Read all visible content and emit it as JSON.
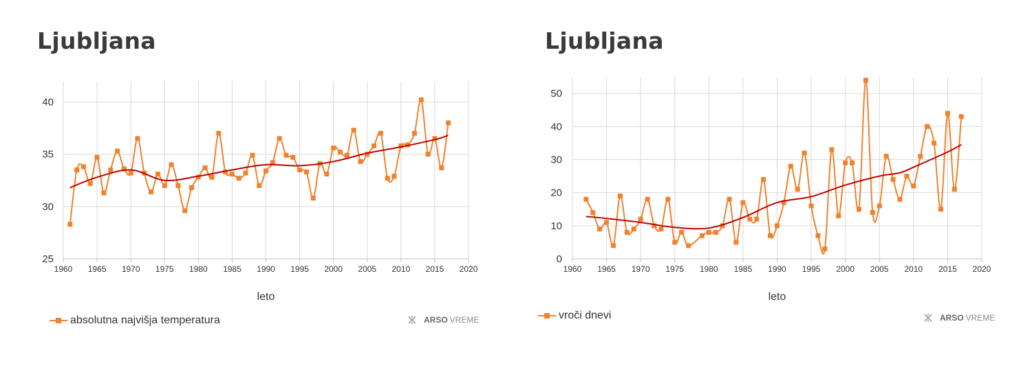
{
  "colors": {
    "series": "#f0822e",
    "trend": "#c00000",
    "grid": "#d9d9d9",
    "axis": "#c0c0c0",
    "text": "#333333"
  },
  "brand": {
    "icon": "arso-snowflake-icon",
    "name_bold": "ARSO",
    "name_light": "VREME"
  },
  "chart_data": [
    {
      "type": "line",
      "title": "Ljubljana",
      "xlabel": "leto",
      "ylabel": "",
      "xlim": [
        1960,
        2020
      ],
      "ylim": [
        25,
        42
      ],
      "xticks": [
        1960,
        1965,
        1970,
        1975,
        1980,
        1985,
        1990,
        1995,
        2000,
        2005,
        2010,
        2015,
        2020
      ],
      "yticks": [
        25,
        30,
        35,
        40
      ],
      "grid": true,
      "legend_position": "bottom-left",
      "series": [
        {
          "name": "absolutna najvišja temperatura",
          "marker": "square",
          "x": [
            1961,
            1962,
            1963,
            1964,
            1965,
            1966,
            1967,
            1968,
            1969,
            1970,
            1971,
            1972,
            1973,
            1974,
            1975,
            1976,
            1977,
            1978,
            1979,
            1980,
            1981,
            1982,
            1983,
            1984,
            1985,
            1986,
            1987,
            1988,
            1989,
            1990,
            1991,
            1992,
            1993,
            1994,
            1995,
            1996,
            1997,
            1998,
            1999,
            2000,
            2001,
            2002,
            2003,
            2004,
            2005,
            2006,
            2007,
            2008,
            2009,
            2010,
            2011,
            2012,
            2013,
            2014,
            2015,
            2016,
            2017
          ],
          "y": [
            28.3,
            33.5,
            33.8,
            32.2,
            34.7,
            31.3,
            33.5,
            35.3,
            33.6,
            33.2,
            36.5,
            33.2,
            31.4,
            33.1,
            32.0,
            34.0,
            32.0,
            29.6,
            31.8,
            32.8,
            33.7,
            32.8,
            37.0,
            33.3,
            33.1,
            32.7,
            33.2,
            34.9,
            32.0,
            33.4,
            34.2,
            36.5,
            34.9,
            34.7,
            33.5,
            33.3,
            30.8,
            34.1,
            33.1,
            35.6,
            35.2,
            34.9,
            37.3,
            34.3,
            35.0,
            35.8,
            37.0,
            32.7,
            32.9,
            35.8,
            35.9,
            37.0,
            40.2,
            35.0,
            36.5,
            33.7,
            38.0
          ]
        },
        {
          "name": "",
          "type": "trend",
          "x": [
            1961,
            1965,
            1970,
            1975,
            1980,
            1985,
            1990,
            1995,
            2000,
            2005,
            2010,
            2015,
            2017
          ],
          "y": [
            31.8,
            32.8,
            33.5,
            32.5,
            32.9,
            33.5,
            34.0,
            33.9,
            34.3,
            35.1,
            35.7,
            36.4,
            36.8
          ]
        }
      ]
    },
    {
      "type": "line",
      "title": "Ljubljana",
      "xlabel": "leto",
      "ylabel": "",
      "xlim": [
        1960,
        2020
      ],
      "ylim": [
        0,
        55
      ],
      "xticks": [
        1960,
        1965,
        1970,
        1975,
        1980,
        1985,
        1990,
        1995,
        2000,
        2005,
        2010,
        2015,
        2020
      ],
      "yticks": [
        0,
        10,
        20,
        30,
        40,
        50
      ],
      "grid": true,
      "legend_position": "bottom-left",
      "series": [
        {
          "name": "vroči dnevi",
          "marker": "square",
          "x": [
            1962,
            1963,
            1964,
            1965,
            1966,
            1967,
            1968,
            1969,
            1970,
            1971,
            1972,
            1973,
            1974,
            1975,
            1976,
            1977,
            1979,
            1980,
            1981,
            1982,
            1983,
            1984,
            1985,
            1986,
            1987,
            1988,
            1989,
            1990,
            1991,
            1992,
            1993,
            1994,
            1995,
            1996,
            1997,
            1998,
            1999,
            2000,
            2001,
            2002,
            2003,
            2004,
            2005,
            2006,
            2007,
            2008,
            2009,
            2010,
            2011,
            2012,
            2013,
            2014,
            2015,
            2016,
            2017
          ],
          "y": [
            18,
            14,
            9,
            11,
            4,
            19,
            8,
            9,
            12,
            18,
            10,
            9,
            18,
            5,
            8,
            4,
            7,
            8,
            8,
            10,
            18,
            5,
            17,
            12,
            12,
            24,
            7,
            10,
            17,
            28,
            21,
            32,
            16,
            7,
            3,
            33,
            13,
            29,
            29,
            15,
            54,
            14,
            16,
            31,
            24,
            18,
            25,
            22,
            31,
            40,
            35,
            15,
            44,
            21,
            43
          ]
        },
        {
          "name": "",
          "type": "trend",
          "x": [
            1962,
            1965,
            1970,
            1975,
            1980,
            1985,
            1990,
            1995,
            2000,
            2005,
            2008,
            2010,
            2015,
            2017
          ],
          "y": [
            12.8,
            12.2,
            11.0,
            9.5,
            9.3,
            12.5,
            17.0,
            18.8,
            22.3,
            25.0,
            26.0,
            27.7,
            32.3,
            34.5
          ]
        }
      ]
    }
  ]
}
